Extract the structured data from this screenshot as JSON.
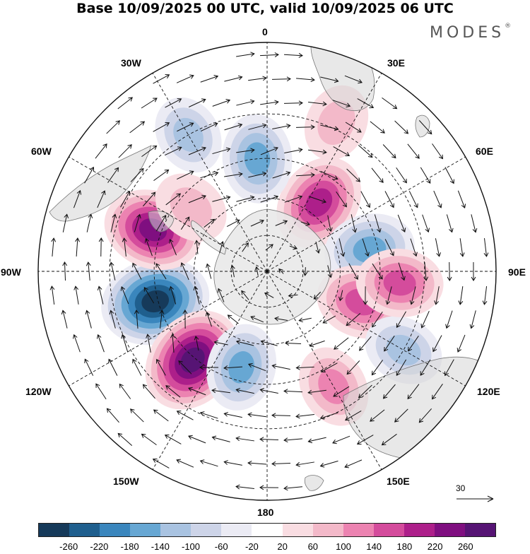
{
  "title": "Base 10/09/2025 00 UTC, valid 10/09/2025 06 UTC",
  "brand": "MODES",
  "brand_mark": "®",
  "longitude_labels": {
    "lon_0": "0",
    "lon_30e": "30E",
    "lon_60e": "60E",
    "lon_90e": "90E",
    "lon_120e": "120E",
    "lon_150e": "150E",
    "lon_180": "180",
    "lon_150w": "150W",
    "lon_120w": "120W",
    "lon_90w": "90W",
    "lon_60w": "60W",
    "lon_30w": "30W"
  },
  "reference_vector_label": "30",
  "colorbar": {
    "colors": [
      "#163a5a",
      "#1f5f8e",
      "#3a86bd",
      "#67a7d3",
      "#a9c3e1",
      "#cdd4e8",
      "#ebebf4",
      "#ffffff",
      "#f9dde2",
      "#f3b9c9",
      "#ec83b1",
      "#d44c9c",
      "#ad1f8a",
      "#7f0f80",
      "#561474"
    ],
    "tick_labels": [
      "-260",
      "-220",
      "-180",
      "-140",
      "-100",
      "-60",
      "-20",
      "20",
      "60",
      "100",
      "140",
      "180",
      "220",
      "260"
    ]
  },
  "field_centers": [
    {
      "lon": -105,
      "lat": -44,
      "value": -280
    },
    {
      "lon": -140,
      "lat": -44,
      "value": 270
    },
    {
      "lon": -70,
      "lat": -42,
      "value": 220
    },
    {
      "lon": 37,
      "lat": -55,
      "value": 210
    },
    {
      "lon": 78,
      "lat": -48,
      "value": -170
    },
    {
      "lon": 108,
      "lat": -50,
      "value": 170
    },
    {
      "lon": -5,
      "lat": -45,
      "value": -160
    },
    {
      "lon": -30,
      "lat": -30,
      "value": -100
    },
    {
      "lon": -165,
      "lat": -50,
      "value": -150
    },
    {
      "lon": 150,
      "lat": -38,
      "value": 120
    },
    {
      "lon": 120,
      "lat": -30,
      "value": -110
    },
    {
      "lon": 95,
      "lat": -38,
      "value": 150
    },
    {
      "lon": 25,
      "lat": -28,
      "value": 90
    },
    {
      "lon": -50,
      "lat": -50,
      "value": 90
    }
  ]
}
